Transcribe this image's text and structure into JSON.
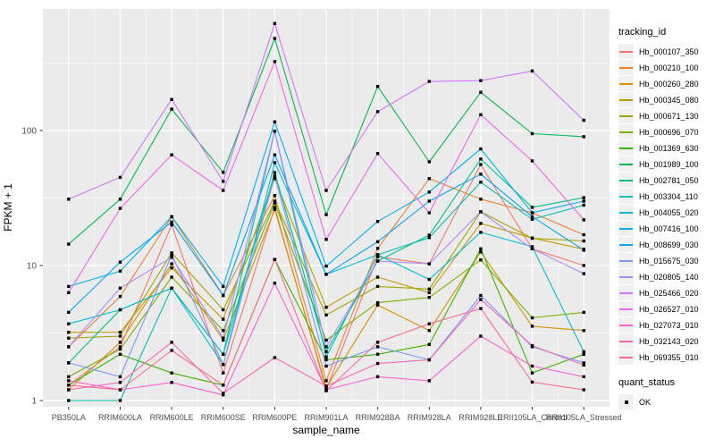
{
  "figure": {
    "bg": "#FFFFFF",
    "panel_bg": "#EBEBEB",
    "grid_color": "#FFFFFF",
    "tick_color": "#333333",
    "axis_text_color": "#4D4D4D",
    "title_color": "#000000",
    "legend_key_bg": "#F0F0F0",
    "point_color": "#000000"
  },
  "axes": {
    "x_label": "sample_name",
    "y_label": "FPKM + 1",
    "y_tick_labels": [
      "1",
      "10",
      "100"
    ]
  },
  "legend": {
    "tracking_title": "tracking_id",
    "quant_title": "quant_status",
    "quant_ok_label": "OK"
  },
  "chart_data": {
    "type": "line",
    "title": "",
    "xlabel": "sample_name",
    "ylabel": "FPKM + 1",
    "y_scale": "log10",
    "ylim": [
      0.9,
      800
    ],
    "y_ticks": [
      1,
      10,
      100
    ],
    "y_minor_ticks": [
      3.162,
      31.62,
      316.2
    ],
    "grid": true,
    "legend_position": "right",
    "point_marker": "black filled square (quant_status = OK)",
    "categories": [
      "PB350LA",
      "RRIM600LA",
      "RRIM600LE",
      "RRIM600SE",
      "RRIM600PE",
      "RRIM901LA",
      "RRIM928BA",
      "RRIM928LA",
      "RRIM928LE",
      "RRII105LA_Control",
      "RRII105LA_Stressed"
    ],
    "series": [
      {
        "name": "Hb_000107_350",
        "color": "#F8766D",
        "values": [
          1.3,
          2.5,
          20,
          1.6,
          27,
          1.2,
          11.6,
          10.3,
          56,
          13.3,
          10
        ]
      },
      {
        "name": "Hb_000210_100",
        "color": "#EA8331",
        "values": [
          2.5,
          5.9,
          23,
          6.0,
          33,
          1.4,
          13.4,
          44,
          31,
          24.6,
          16.9
        ]
      },
      {
        "name": "Hb_000260_280",
        "color": "#D89000",
        "values": [
          1.2,
          2.7,
          10.3,
          2.8,
          26,
          1.25,
          5.1,
          3.3,
          12.6,
          3.55,
          3.3
        ]
      },
      {
        "name": "Hb_000345_080",
        "color": "#C09B00",
        "values": [
          3.2,
          3.2,
          9.6,
          4.0,
          44,
          4.9,
          8.2,
          6.3,
          20.5,
          16,
          13.2
        ]
      },
      {
        "name": "Hb_000671_130",
        "color": "#A3A500",
        "values": [
          2.9,
          3.0,
          12.4,
          4.7,
          30,
          4.3,
          7.0,
          6.7,
          25,
          15.9,
          15.2
        ]
      },
      {
        "name": "Hb_000696_070",
        "color": "#7CAE00",
        "values": [
          1.5,
          2.4,
          8.2,
          3.3,
          29,
          2.8,
          5.3,
          5.8,
          11,
          4.1,
          4.5
        ]
      },
      {
        "name": "Hb_001369_630",
        "color": "#39B600",
        "values": [
          1.3,
          2.2,
          1.6,
          1.3,
          11.1,
          2.0,
          2.2,
          2.6,
          13.3,
          1.6,
          2.2
        ]
      },
      {
        "name": "Hb_001989_100",
        "color": "#00BB4E",
        "values": [
          14.4,
          31,
          144,
          49,
          481,
          23.8,
          212,
          58.6,
          192,
          94.8,
          90
        ]
      },
      {
        "name": "Hb_002781_050",
        "color": "#00C087",
        "values": [
          1.9,
          4.7,
          6.8,
          2.2,
          48.8,
          2.3,
          10.8,
          16.8,
          61.5,
          27,
          31.8
        ]
      },
      {
        "name": "Hb_003304_110",
        "color": "#00C0B2",
        "values": [
          1.0,
          1.0,
          6.8,
          2.2,
          99,
          2.1,
          12,
          16.1,
          41.5,
          22,
          28
        ]
      },
      {
        "name": "Hb_004055_020",
        "color": "#00BCD8",
        "values": [
          3.7,
          4.7,
          6.8,
          1.85,
          57.8,
          8.6,
          12,
          7.9,
          17.6,
          13.8,
          2.3
        ]
      },
      {
        "name": "Hb_007416_100",
        "color": "#00B0F6",
        "values": [
          7.0,
          9.1,
          23,
          7.0,
          116,
          9.9,
          21.2,
          35,
          73,
          24.6,
          30
        ]
      },
      {
        "name": "Hb_008699_030",
        "color": "#00A5FF",
        "values": [
          4.5,
          10.6,
          21,
          6.0,
          66,
          8.6,
          15,
          30,
          47.5,
          23,
          13
        ]
      },
      {
        "name": "Hb_015675_030",
        "color": "#7997FF",
        "values": [
          1.9,
          1.5,
          12,
          1.85,
          46,
          1.8,
          2.5,
          2.0,
          6.0,
          2.5,
          1.9
        ]
      },
      {
        "name": "Hb_020805_140",
        "color": "#AC88FF",
        "values": [
          2.5,
          6.8,
          11.5,
          2.9,
          99,
          2.5,
          10.8,
          10.3,
          25,
          13.3,
          8.7
        ]
      },
      {
        "name": "Hb_025466_020",
        "color": "#D277FF",
        "values": [
          31,
          45,
          170,
          42,
          620,
          36,
          138,
          231,
          234,
          276,
          119
        ]
      },
      {
        "name": "Hb_026527_010",
        "color": "#EF67EB",
        "values": [
          6.3,
          26.5,
          66,
          36,
          324,
          15.6,
          67.6,
          24.6,
          131,
          59.5,
          21.8
        ]
      },
      {
        "name": "Hb_027073_010",
        "color": "#FD61D3",
        "values": [
          1.4,
          1.2,
          1.36,
          1.1,
          7.4,
          1.2,
          1.5,
          1.4,
          3.0,
          1.8,
          1.5
        ]
      },
      {
        "name": "Hb_032143_020",
        "color": "#FF65B0",
        "values": [
          1.2,
          1.36,
          2.7,
          1.13,
          2.08,
          1.28,
          1.88,
          2.0,
          5.6,
          2.55,
          1.83
        ]
      },
      {
        "name": "Hb_069355_010",
        "color": "#FF6C91",
        "values": [
          1.3,
          1.2,
          2.35,
          1.3,
          11.1,
          1.18,
          2.7,
          3.7,
          4.8,
          1.37,
          1.2
        ]
      }
    ]
  }
}
